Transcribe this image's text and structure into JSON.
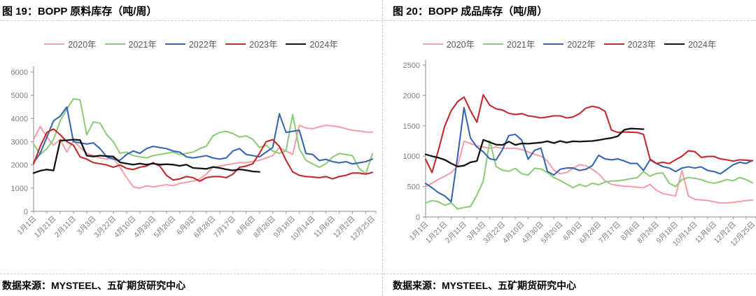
{
  "chart_data": [
    {
      "type": "line",
      "figure_label": "图 19：BOPP 原料库存（吨/周）",
      "source": "数据来源：MYSTEEL、五矿期货研究中心",
      "ylim": [
        0,
        6000
      ],
      "yticks": [
        0,
        1000,
        2000,
        3000,
        4000,
        5000,
        6000
      ],
      "grid": false,
      "legend_position": "top",
      "x_tick_labels": [
        "1月1日",
        "1月21日",
        "2月11日",
        "3月3日",
        "3月22日",
        "4月10日",
        "4月30日",
        "5月20日",
        "6月9日",
        "6月28日",
        "7月17日",
        "8月6日",
        "8月26日",
        "9月18日",
        "10月14日",
        "11月6日",
        "12月2日",
        "12月25日"
      ],
      "x_tick_step": 3,
      "x_total_points": 52,
      "axis_color": "#a0a0a0",
      "tick_label_color": "#7f7f7f",
      "series": [
        {
          "name": "2020年",
          "color": "#F2A2A6",
          "values": [
            3100,
            3650,
            3200,
            2850,
            3100,
            2550,
            3050,
            2750,
            2500,
            2400,
            2300,
            2250,
            2300,
            1900,
            1450,
            1050,
            1000,
            1100,
            1050,
            1100,
            1150,
            1100,
            1200,
            1250,
            1300,
            1400,
            1600,
            1900,
            1950,
            2000,
            2050,
            2100,
            2100,
            2150,
            2200,
            2300,
            2400,
            2750,
            2600,
            2450,
            3700,
            3590,
            3560,
            3640,
            3710,
            3680,
            3640,
            3560,
            3490,
            3460,
            3420,
            3410
          ]
        },
        {
          "name": "2021年",
          "color": "#8FCB7C",
          "values": [
            2900,
            2450,
            2700,
            3100,
            3900,
            4400,
            4850,
            4800,
            3300,
            3850,
            3800,
            3300,
            3000,
            2500,
            2550,
            2400,
            2350,
            2300,
            2400,
            2450,
            2500,
            2550,
            2450,
            2500,
            2550,
            2700,
            2800,
            3250,
            3400,
            3450,
            3350,
            3200,
            3250,
            3100,
            2750,
            2850,
            2600,
            2500,
            2600,
            4170,
            2690,
            2200,
            2040,
            1900,
            2050,
            2340,
            2490,
            2450,
            2400,
            1850,
            1620,
            2480
          ]
        },
        {
          "name": "2022年",
          "color": "#3966B0",
          "values": [
            2100,
            2500,
            3200,
            3900,
            4100,
            4500,
            3000,
            2950,
            2900,
            2950,
            2700,
            2350,
            2250,
            2200,
            2450,
            2600,
            2500,
            2700,
            2800,
            2750,
            2700,
            2600,
            2550,
            2350,
            2300,
            2350,
            2400,
            2300,
            2250,
            2300,
            2600,
            2700,
            2450,
            2400,
            2350,
            2550,
            2750,
            4200,
            3400,
            3450,
            3490,
            2490,
            2450,
            2190,
            2240,
            2140,
            2090,
            2140,
            2040,
            2090,
            2140,
            2250
          ]
        },
        {
          "name": "2023年",
          "color": "#C12A2E",
          "values": [
            2050,
            2800,
            3400,
            3550,
            3300,
            3000,
            2850,
            2350,
            2250,
            2100,
            2050,
            2000,
            1900,
            2000,
            1850,
            1800,
            1900,
            1950,
            2100,
            1950,
            1550,
            1350,
            1400,
            1500,
            1450,
            1300,
            1450,
            1500,
            1500,
            1450,
            1600,
            1900,
            1950,
            2050,
            2500,
            3000,
            3090,
            2800,
            2200,
            1700,
            1550,
            1500,
            1480,
            1450,
            1500,
            1400,
            1500,
            1550,
            1650,
            1650,
            1600,
            1680
          ]
        },
        {
          "name": "2024年",
          "color": "#141414",
          "values": [
            1650,
            1750,
            1800,
            1760,
            3050,
            3060,
            3090,
            3070,
            2400,
            2360,
            2400,
            2380,
            2360,
            2110,
            2060,
            2010,
            2060,
            2010,
            2060,
            2010,
            2030,
            2010,
            1960,
            2010,
            1870,
            1850,
            1830,
            1910,
            1870,
            1810,
            1760,
            1810,
            1770,
            1720,
            1700
          ]
        }
      ]
    },
    {
      "type": "line",
      "figure_label": "图 20：BOPP 成品库存（吨/周）",
      "source": "数据来源：MYSTEEL、五矿期货研究中心",
      "ylim": [
        0,
        2500
      ],
      "yticks": [
        0,
        500,
        1000,
        1500,
        2000,
        2500
      ],
      "grid": false,
      "legend_position": "top",
      "x_tick_labels": [
        "1月1日",
        "1月21日",
        "2月11日",
        "3月3日",
        "3月22日",
        "4月10日",
        "4月30日",
        "5月20日",
        "6月9日",
        "6月28日",
        "7月17日",
        "8月6日",
        "8月26日",
        "9月18日",
        "10月14日",
        "11月6日",
        "12月2日",
        "12月25日"
      ],
      "x_tick_step": 3,
      "x_total_points": 52,
      "axis_color": "#a0a0a0",
      "tick_label_color": "#7f7f7f",
      "series": [
        {
          "name": "2020年",
          "color": "#F2A2A6",
          "values": [
            500,
            555,
            620,
            670,
            730,
            840,
            1245,
            1210,
            1170,
            1150,
            1130,
            1150,
            1130,
            1130,
            1130,
            1110,
            1070,
            1030,
            1000,
            920,
            770,
            710,
            730,
            800,
            860,
            845,
            785,
            710,
            595,
            535,
            520,
            505,
            500,
            490,
            480,
            536,
            440,
            385,
            365,
            345,
            765,
            345,
            290,
            280,
            270,
            250,
            230,
            230,
            240,
            255,
            268,
            278
          ]
        },
        {
          "name": "2021年",
          "color": "#8FCB7C",
          "values": [
            230,
            270,
            250,
            190,
            230,
            130,
            155,
            170,
            360,
            590,
            1250,
            830,
            770,
            750,
            800,
            710,
            690,
            800,
            790,
            730,
            650,
            600,
            540,
            480,
            535,
            500,
            555,
            530,
            575,
            590,
            595,
            610,
            630,
            645,
            745,
            670,
            715,
            725,
            555,
            500,
            615,
            650,
            635,
            615,
            575,
            555,
            580,
            615,
            595,
            650,
            615,
            560
          ]
        },
        {
          "name": "2022年",
          "color": "#3966B0",
          "values": [
            550,
            480,
            400,
            345,
            250,
            1000,
            1800,
            1300,
            1150,
            1072,
            957,
            938,
            1111,
            1341,
            1360,
            1264,
            950,
            1096,
            1134,
            750,
            690,
            785,
            805,
            805,
            765,
            785,
            845,
            1015,
            955,
            940,
            955,
            920,
            880,
            880,
            765,
            940,
            880,
            830,
            805,
            747,
            805,
            825,
            805,
            825,
            765,
            747,
            710,
            785,
            860,
            900,
            880,
            930
          ]
        },
        {
          "name": "2023年",
          "color": "#C12A2E",
          "values": [
            950,
            730,
            1100,
            1500,
            1750,
            1900,
            1975,
            1750,
            1560,
            2010,
            1840,
            1780,
            1760,
            1705,
            1685,
            1700,
            1665,
            1650,
            1630,
            1645,
            1665,
            1665,
            1630,
            1645,
            1700,
            1790,
            1820,
            1800,
            1740,
            1430,
            1390,
            1400,
            1395,
            1390,
            1360,
            955,
            880,
            900,
            880,
            940,
            1000,
            1090,
            1075,
            980,
            995,
            995,
            955,
            940,
            920,
            940,
            935,
            925
          ]
        },
        {
          "name": "2024年",
          "color": "#141414",
          "values": [
            1030,
            1000,
            975,
            940,
            880,
            830,
            845,
            900,
            920,
            1270,
            1230,
            1190,
            1185,
            1240,
            1185,
            1210,
            1205,
            1215,
            1225,
            1245,
            1215,
            1250,
            1225,
            1245,
            1240,
            1245,
            1250,
            1265,
            1285,
            1300,
            1330,
            1435,
            1455,
            1450,
            1445
          ]
        }
      ]
    }
  ]
}
